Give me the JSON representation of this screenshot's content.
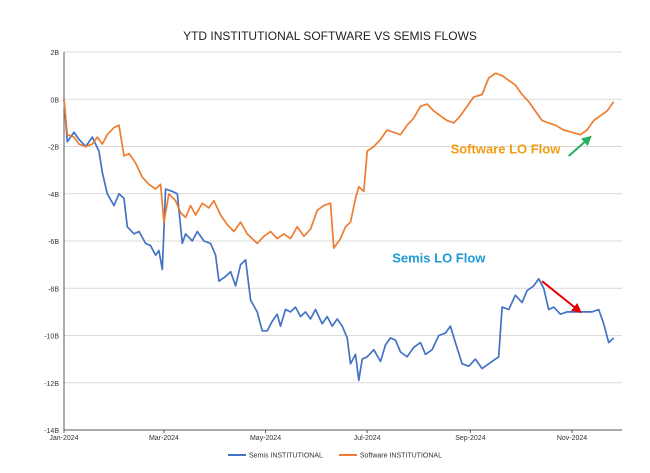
{
  "chart_data": {
    "type": "line",
    "title": "YTD INSTITUTIONAL SOFTWARE VS SEMIS FLOWS",
    "xlabel": "",
    "ylabel": "",
    "x_range": [
      "2024-01-01",
      "2024-12-01"
    ],
    "ylim": [
      -14,
      2
    ],
    "y_ticks": [
      {
        "value": 2,
        "label": "2B"
      },
      {
        "value": 0,
        "label": "0B"
      },
      {
        "value": -2,
        "label": "-2B"
      },
      {
        "value": -4,
        "label": "-4B"
      },
      {
        "value": -6,
        "label": "-6B"
      },
      {
        "value": -8,
        "label": "-8B"
      },
      {
        "value": -10,
        "label": "-10B"
      },
      {
        "value": -12,
        "label": "-12B"
      },
      {
        "value": -14,
        "label": "-14B"
      }
    ],
    "x_ticks": [
      {
        "value": "2024-01-01",
        "label": "Jan-2024"
      },
      {
        "value": "2024-03-01",
        "label": "Mar-2024"
      },
      {
        "value": "2024-05-01",
        "label": "May-2024"
      },
      {
        "value": "2024-07-01",
        "label": "Jul-2024"
      },
      {
        "value": "2024-09-01",
        "label": "Sep-2024"
      },
      {
        "value": "2024-11-01",
        "label": "Nov-2024"
      }
    ],
    "legend_position": "bottom",
    "series": [
      {
        "name": "Semis INSTITUTIONAL",
        "color": "#4472c4",
        "points": [
          [
            "2024-01-01",
            0
          ],
          [
            "2024-01-03",
            -1.8
          ],
          [
            "2024-01-07",
            -1.4
          ],
          [
            "2024-01-10",
            -1.7
          ],
          [
            "2024-01-14",
            -2.0
          ],
          [
            "2024-01-18",
            -1.6
          ],
          [
            "2024-01-22",
            -2.2
          ],
          [
            "2024-01-24",
            -3.1
          ],
          [
            "2024-01-27",
            -4.0
          ],
          [
            "2024-01-31",
            -4.5
          ],
          [
            "2024-02-03",
            -4.0
          ],
          [
            "2024-02-06",
            -4.2
          ],
          [
            "2024-02-08",
            -5.4
          ],
          [
            "2024-02-12",
            -5.7
          ],
          [
            "2024-02-15",
            -5.6
          ],
          [
            "2024-02-19",
            -6.1
          ],
          [
            "2024-02-22",
            -6.2
          ],
          [
            "2024-02-25",
            -6.6
          ],
          [
            "2024-02-27",
            -6.4
          ],
          [
            "2024-02-29",
            -7.2
          ],
          [
            "2024-03-02",
            -3.8
          ],
          [
            "2024-03-06",
            -3.9
          ],
          [
            "2024-03-09",
            -4.0
          ],
          [
            "2024-03-12",
            -6.1
          ],
          [
            "2024-03-14",
            -5.7
          ],
          [
            "2024-03-18",
            -6.0
          ],
          [
            "2024-03-21",
            -5.6
          ],
          [
            "2024-03-25",
            -6.0
          ],
          [
            "2024-03-29",
            -6.1
          ],
          [
            "2024-04-01",
            -6.6
          ],
          [
            "2024-04-03",
            -7.7
          ],
          [
            "2024-04-07",
            -7.5
          ],
          [
            "2024-04-10",
            -7.3
          ],
          [
            "2024-04-13",
            -7.9
          ],
          [
            "2024-04-16",
            -7.0
          ],
          [
            "2024-04-19",
            -6.8
          ],
          [
            "2024-04-22",
            -8.5
          ],
          [
            "2024-04-26",
            -9.0
          ],
          [
            "2024-04-29",
            -9.8
          ],
          [
            "2024-05-02",
            -9.8
          ],
          [
            "2024-05-05",
            -9.4
          ],
          [
            "2024-05-08",
            -9.1
          ],
          [
            "2024-05-10",
            -9.6
          ],
          [
            "2024-05-13",
            -8.9
          ],
          [
            "2024-05-16",
            -9.0
          ],
          [
            "2024-05-19",
            -8.8
          ],
          [
            "2024-05-22",
            -9.2
          ],
          [
            "2024-05-25",
            -9.0
          ],
          [
            "2024-05-28",
            -9.3
          ],
          [
            "2024-05-31",
            -8.9
          ],
          [
            "2024-06-04",
            -9.5
          ],
          [
            "2024-06-07",
            -9.2
          ],
          [
            "2024-06-10",
            -9.6
          ],
          [
            "2024-06-13",
            -9.3
          ],
          [
            "2024-06-16",
            -9.6
          ],
          [
            "2024-06-19",
            -10.1
          ],
          [
            "2024-06-21",
            -11.2
          ],
          [
            "2024-06-24",
            -10.8
          ],
          [
            "2024-06-26",
            -11.9
          ],
          [
            "2024-06-28",
            -11.0
          ],
          [
            "2024-07-01",
            -10.9
          ],
          [
            "2024-07-05",
            -10.6
          ],
          [
            "2024-07-09",
            -11.1
          ],
          [
            "2024-07-12",
            -10.4
          ],
          [
            "2024-07-15",
            -10.1
          ],
          [
            "2024-07-18",
            -10.2
          ],
          [
            "2024-07-21",
            -10.7
          ],
          [
            "2024-07-25",
            -10.9
          ],
          [
            "2024-07-29",
            -10.5
          ],
          [
            "2024-08-02",
            -10.3
          ],
          [
            "2024-08-05",
            -10.8
          ],
          [
            "2024-08-09",
            -10.6
          ],
          [
            "2024-08-13",
            -10.0
          ],
          [
            "2024-08-17",
            -9.9
          ],
          [
            "2024-08-20",
            -9.6
          ],
          [
            "2024-08-23",
            -10.3
          ],
          [
            "2024-08-27",
            -11.2
          ],
          [
            "2024-08-31",
            -11.3
          ],
          [
            "2024-09-04",
            -11.0
          ],
          [
            "2024-09-08",
            -11.4
          ],
          [
            "2024-09-12",
            -11.2
          ],
          [
            "2024-09-16",
            -11.0
          ],
          [
            "2024-09-18",
            -10.9
          ],
          [
            "2024-09-20",
            -8.8
          ],
          [
            "2024-09-24",
            -8.9
          ],
          [
            "2024-09-28",
            -8.3
          ],
          [
            "2024-10-02",
            -8.6
          ],
          [
            "2024-10-05",
            -8.1
          ],
          [
            "2024-10-09",
            -7.9
          ],
          [
            "2024-10-12",
            -7.6
          ],
          [
            "2024-10-15",
            -8.0
          ],
          [
            "2024-10-18",
            -8.9
          ],
          [
            "2024-10-21",
            -8.8
          ],
          [
            "2024-10-25",
            -9.1
          ],
          [
            "2024-10-29",
            -9.0
          ],
          [
            "2024-11-03",
            -9.0
          ],
          [
            "2024-11-08",
            -9.0
          ],
          [
            "2024-11-13",
            -9.0
          ],
          [
            "2024-11-17",
            -8.9
          ],
          [
            "2024-11-20",
            -9.5
          ],
          [
            "2024-11-23",
            -10.3
          ],
          [
            "2024-11-26",
            -10.1
          ]
        ]
      },
      {
        "name": "Software INSTITUTIONAL",
        "color": "#ed7d31",
        "points": [
          [
            "2024-01-01",
            0
          ],
          [
            "2024-01-03",
            -1.5
          ],
          [
            "2024-01-07",
            -1.6
          ],
          [
            "2024-01-10",
            -1.9
          ],
          [
            "2024-01-14",
            -2.0
          ],
          [
            "2024-01-18",
            -1.9
          ],
          [
            "2024-01-21",
            -1.6
          ],
          [
            "2024-01-24",
            -1.9
          ],
          [
            "2024-01-27",
            -1.5
          ],
          [
            "2024-01-31",
            -1.2
          ],
          [
            "2024-02-03",
            -1.1
          ],
          [
            "2024-02-06",
            -2.4
          ],
          [
            "2024-02-09",
            -2.3
          ],
          [
            "2024-02-13",
            -2.7
          ],
          [
            "2024-02-17",
            -3.3
          ],
          [
            "2024-02-21",
            -3.6
          ],
          [
            "2024-02-25",
            -3.8
          ],
          [
            "2024-02-28",
            -3.6
          ],
          [
            "2024-03-01",
            -5.2
          ],
          [
            "2024-03-04",
            -4.0
          ],
          [
            "2024-03-08",
            -4.3
          ],
          [
            "2024-03-11",
            -4.8
          ],
          [
            "2024-03-14",
            -5.0
          ],
          [
            "2024-03-17",
            -4.5
          ],
          [
            "2024-03-20",
            -4.9
          ],
          [
            "2024-03-24",
            -4.4
          ],
          [
            "2024-03-28",
            -4.6
          ],
          [
            "2024-03-31",
            -4.3
          ],
          [
            "2024-04-04",
            -4.9
          ],
          [
            "2024-04-08",
            -5.3
          ],
          [
            "2024-04-12",
            -5.6
          ],
          [
            "2024-04-16",
            -5.2
          ],
          [
            "2024-04-20",
            -5.7
          ],
          [
            "2024-04-23",
            -5.9
          ],
          [
            "2024-04-26",
            -6.1
          ],
          [
            "2024-04-30",
            -5.8
          ],
          [
            "2024-05-04",
            -5.6
          ],
          [
            "2024-05-08",
            -5.9
          ],
          [
            "2024-05-12",
            -5.7
          ],
          [
            "2024-05-16",
            -5.9
          ],
          [
            "2024-05-20",
            -5.4
          ],
          [
            "2024-05-24",
            -5.8
          ],
          [
            "2024-05-28",
            -5.5
          ],
          [
            "2024-06-01",
            -4.7
          ],
          [
            "2024-06-05",
            -4.5
          ],
          [
            "2024-06-09",
            -4.4
          ],
          [
            "2024-06-11",
            -6.3
          ],
          [
            "2024-06-15",
            -5.9
          ],
          [
            "2024-06-18",
            -5.4
          ],
          [
            "2024-06-21",
            -5.2
          ],
          [
            "2024-06-24",
            -4.2
          ],
          [
            "2024-06-26",
            -3.7
          ],
          [
            "2024-06-29",
            -3.9
          ],
          [
            "2024-07-01",
            -2.2
          ],
          [
            "2024-07-05",
            -2.0
          ],
          [
            "2024-07-09",
            -1.7
          ],
          [
            "2024-07-13",
            -1.3
          ],
          [
            "2024-07-17",
            -1.4
          ],
          [
            "2024-07-21",
            -1.5
          ],
          [
            "2024-07-25",
            -1.1
          ],
          [
            "2024-07-29",
            -0.8
          ],
          [
            "2024-08-02",
            -0.3
          ],
          [
            "2024-08-06",
            -0.2
          ],
          [
            "2024-08-10",
            -0.5
          ],
          [
            "2024-08-14",
            -0.7
          ],
          [
            "2024-08-18",
            -0.9
          ],
          [
            "2024-08-22",
            -1.0
          ],
          [
            "2024-08-26",
            -0.7
          ],
          [
            "2024-08-30",
            -0.3
          ],
          [
            "2024-09-03",
            0.1
          ],
          [
            "2024-09-08",
            0.2
          ],
          [
            "2024-09-12",
            0.9
          ],
          [
            "2024-09-16",
            1.1
          ],
          [
            "2024-09-20",
            1.0
          ],
          [
            "2024-09-24",
            0.8
          ],
          [
            "2024-09-28",
            0.6
          ],
          [
            "2024-10-02",
            0.2
          ],
          [
            "2024-10-06",
            -0.1
          ],
          [
            "2024-10-10",
            -0.5
          ],
          [
            "2024-10-14",
            -0.9
          ],
          [
            "2024-10-18",
            -1.0
          ],
          [
            "2024-10-22",
            -1.1
          ],
          [
            "2024-10-27",
            -1.3
          ],
          [
            "2024-11-01",
            -1.4
          ],
          [
            "2024-11-06",
            -1.5
          ],
          [
            "2024-11-10",
            -1.3
          ],
          [
            "2024-11-14",
            -0.9
          ],
          [
            "2024-11-18",
            -0.7
          ],
          [
            "2024-11-22",
            -0.5
          ],
          [
            "2024-11-26",
            -0.1
          ]
        ]
      }
    ],
    "annotations": [
      {
        "id": "software",
        "text": "Software LO Flow",
        "color": "#f39c12",
        "arrow_color": "#27ae60",
        "anchor": [
          "2024-10-25",
          -2.3
        ],
        "arrow_from": [
          "2024-10-30",
          -2.4
        ],
        "arrow_to": [
          "2024-11-12",
          -1.6
        ]
      },
      {
        "id": "semis",
        "text": "Semis LO Flow",
        "color": "#1f9ad6",
        "arrow_color": "#e60000",
        "anchor": [
          "2024-09-10",
          -6.9
        ],
        "arrow_from": [
          "2024-10-14",
          -7.7
        ],
        "arrow_to": [
          "2024-11-06",
          -9.0
        ]
      }
    ]
  }
}
